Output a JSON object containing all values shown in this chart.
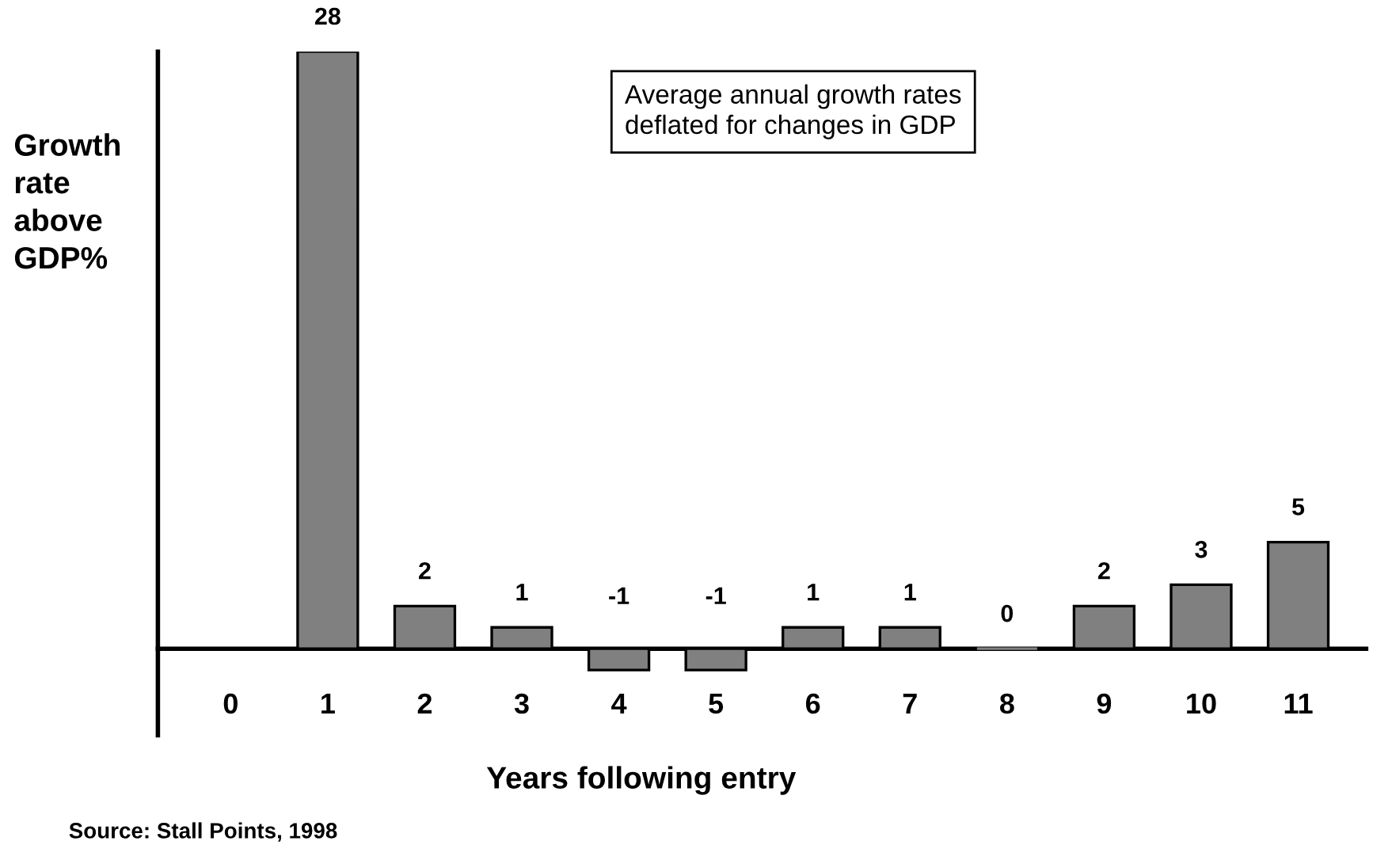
{
  "chart_data": {
    "type": "bar",
    "categories": [
      "0",
      "1",
      "2",
      "3",
      "4",
      "5",
      "6",
      "7",
      "8",
      "9",
      "10",
      "11"
    ],
    "values": [
      null,
      28,
      2,
      1,
      -1,
      -1,
      1,
      1,
      0,
      2,
      3,
      5
    ],
    "color": "#808080",
    "data_labels": true,
    "xlabel": "Years following entry",
    "ylabel": "Growth\nrate\nabove\nGDP%",
    "annotations": [
      "Average annual growth rates\ndeflated for changes in GDP",
      "Source: Stall Points, 1998"
    ],
    "tick_labels": "x",
    "grid": false
  }
}
